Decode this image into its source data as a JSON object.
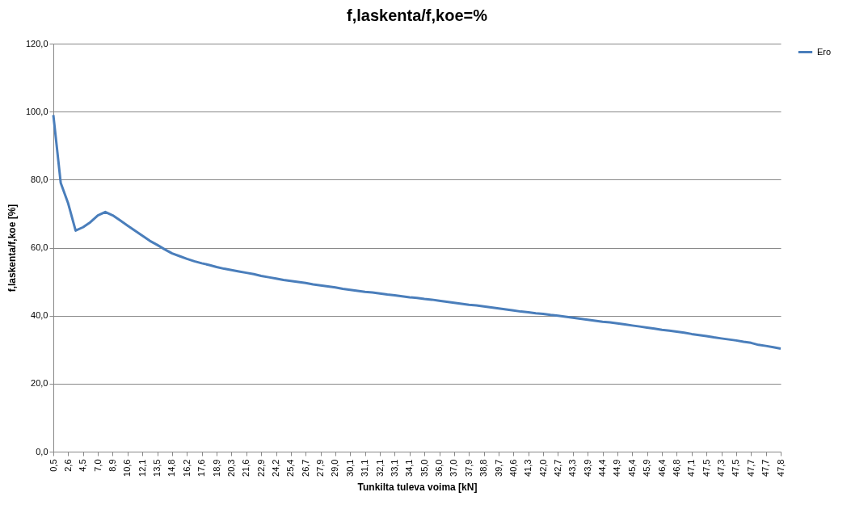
{
  "chart_data": {
    "type": "line",
    "title": "f,laskenta/f,koe=%",
    "xlabel": "Tunkilta tuleva voima [kN]",
    "ylabel": "f,laskenta/f,koe [%]",
    "categories": [
      "0,5",
      null,
      "2,6",
      null,
      "4,5",
      null,
      "7,0",
      null,
      "8,9",
      null,
      "10,6",
      null,
      "12,1",
      null,
      "13,5",
      null,
      "14,8",
      null,
      "16,2",
      null,
      "17,6",
      null,
      "18,9",
      null,
      "20,3",
      null,
      "21,6",
      null,
      "22,9",
      null,
      "24,2",
      null,
      "25,4",
      null,
      "26,7",
      null,
      "27,9",
      null,
      "29,0",
      null,
      "30,1",
      null,
      "31,1",
      null,
      "32,1",
      null,
      "33,1",
      null,
      "34,1",
      null,
      "35,0",
      null,
      "36,0",
      null,
      "37,0",
      null,
      "37,9",
      null,
      "38,8",
      null,
      "39,7",
      null,
      "40,6",
      null,
      "41,3",
      null,
      "42,0",
      null,
      "42,7",
      null,
      "43,3",
      null,
      "43,9",
      null,
      "44,4",
      null,
      "44,9",
      null,
      "45,4",
      null,
      "45,9",
      null,
      "46,4",
      null,
      "46,8",
      null,
      "47,1",
      null,
      "47,5",
      null,
      "47,3",
      null,
      "47,5",
      null,
      "47,7",
      null,
      "47,7",
      null,
      "47,8"
    ],
    "series": [
      {
        "name": "Ero",
        "color": "#4a7ebb",
        "values": [
          99,
          79,
          73,
          65,
          66,
          67.5,
          69.5,
          70.5,
          69.5,
          68,
          66.5,
          65,
          63.5,
          62,
          60.8,
          59.5,
          58.3,
          57.5,
          56.7,
          56,
          55.4,
          54.9,
          54.3,
          53.8,
          53.4,
          53.0,
          52.6,
          52.2,
          51.7,
          51.3,
          50.9,
          50.5,
          50.2,
          49.9,
          49.6,
          49.2,
          48.9,
          48.6,
          48.3,
          47.9,
          47.6,
          47.3,
          47.0,
          46.8,
          46.5,
          46.2,
          46.0,
          45.7,
          45.4,
          45.2,
          44.9,
          44.7,
          44.4,
          44.1,
          43.8,
          43.5,
          43.2,
          43.0,
          42.7,
          42.4,
          42.1,
          41.8,
          41.5,
          41.2,
          41.0,
          40.7,
          40.5,
          40.2,
          40.0,
          39.7,
          39.4,
          39.1,
          38.8,
          38.5,
          38.2,
          38.0,
          37.7,
          37.4,
          37.1,
          36.8,
          36.5,
          36.2,
          35.8,
          35.6,
          35.3,
          35.0,
          34.6,
          34.3,
          34.0,
          33.6,
          33.3,
          33.0,
          32.7,
          32.3,
          32.0,
          31.4,
          31.1,
          30.7,
          30.3
        ]
      }
    ],
    "ylim": [
      0,
      120
    ],
    "yticks": [
      {
        "value": 0,
        "label": "0,0"
      },
      {
        "value": 20,
        "label": "20,0"
      },
      {
        "value": 40,
        "label": "40,0"
      },
      {
        "value": 60,
        "label": "60,0"
      },
      {
        "value": 80,
        "label": "80,0"
      },
      {
        "value": 100,
        "label": "100,0"
      },
      {
        "value": 120,
        "label": "120,0"
      }
    ],
    "grid": "y",
    "legend": "right",
    "marker": "none",
    "line_style": "solid"
  }
}
